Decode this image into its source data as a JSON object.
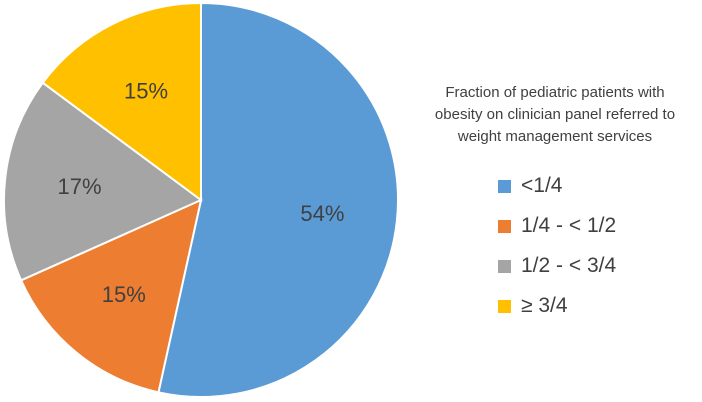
{
  "chart_data": {
    "type": "pie",
    "title": "Fraction of pediatric patients with obesity on clinician panel referred to weight management services",
    "title_lines": [
      "Fraction of pediatric patients with",
      "obesity on clinician panel referred to",
      "weight management services"
    ],
    "legend_position": "right",
    "start_angle": "12 o'clock",
    "direction": "clockwise",
    "slices": [
      {
        "label": "<1/4",
        "value": 54,
        "display": "54%",
        "color": "#5b9bd5"
      },
      {
        "label": "1/4 - < 1/2",
        "value": 15,
        "display": "15%",
        "color": "#ed7d31"
      },
      {
        "label": "1/2 - < 3/4",
        "value": 17,
        "display": "17%",
        "color": "#a5a5a5"
      },
      {
        "label": "≥ 3/4",
        "value": 15,
        "display": "15%",
        "color": "#ffc000"
      }
    ]
  }
}
